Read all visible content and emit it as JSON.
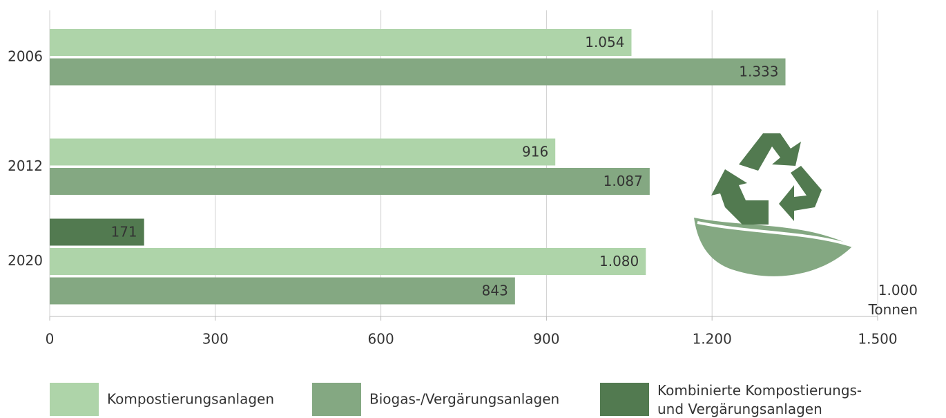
{
  "chart_data": {
    "type": "hbar",
    "categories": [
      "2006",
      "2012",
      "2020"
    ],
    "series": [
      {
        "name": "Kompostierungsanlagen",
        "color": "#aed4a9",
        "values": [
          1054,
          916,
          1080
        ],
        "value_labels": [
          "1.054",
          "916",
          "1.080"
        ]
      },
      {
        "name": "Biogas-/Vergärungsanlagen",
        "color": "#84a882",
        "values": [
          1333,
          1087,
          843
        ],
        "value_labels": [
          "1.333",
          "1.087",
          "843"
        ]
      },
      {
        "name": "Kombinierte Kompostierungs- und Vergärungsanlagen",
        "color": "#527a50",
        "values": [
          null,
          null,
          171
        ],
        "value_labels": [
          null,
          null,
          "171"
        ]
      }
    ],
    "xlim": [
      0,
      1500
    ],
    "xticks": [
      0,
      300,
      600,
      900,
      {
        "value": 1200,
        "label": "1.200"
      },
      {
        "value": 1500,
        "label": "1.500"
      }
    ],
    "xlabel": [
      "1.000",
      "Tonnen"
    ],
    "grid": true
  }
}
